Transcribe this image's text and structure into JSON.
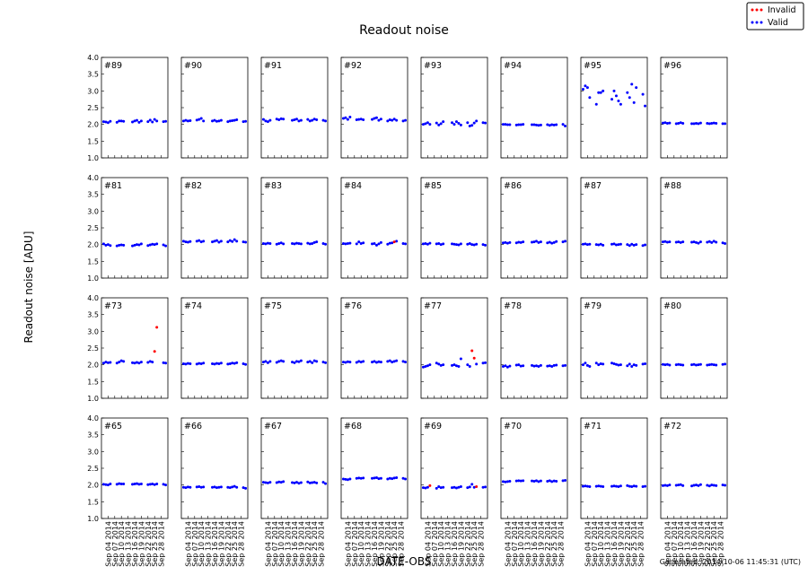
{
  "chart_data": {
    "type": "scatter",
    "title": "Readout noise",
    "xlabel": "DATE-OBS",
    "ylabel": "Readout noise [ADU]",
    "footer": "Generated: 2014-10-06 11:45:31 (UTC)",
    "legend": [
      {
        "name": "Invalid",
        "color": "#ff0000"
      },
      {
        "name": "Valid",
        "color": "#0000ff"
      }
    ],
    "legend_loc": "upper right",
    "xlim": [
      "Sep 01 2014",
      "Oct 01 2014"
    ],
    "xticks": [
      "Sep 04 2014",
      "Sep 07 2014",
      "Sep 10 2014",
      "Sep 13 2014",
      "Sep 16 2014",
      "Sep 19 2014",
      "Sep 22 2014",
      "Sep 25 2014",
      "Sep 28 2014"
    ],
    "ylim": [
      1.0,
      4.0
    ],
    "yticks": [
      {
        "value": 1,
        "label": "1.0"
      },
      {
        "value": 1.5,
        "label": "1.5"
      },
      {
        "value": 2,
        "label": "2.0"
      },
      {
        "value": 2.5,
        "label": "2.5"
      },
      {
        "value": 3,
        "label": "3.0"
      },
      {
        "value": 3.5,
        "label": "3.5"
      },
      {
        "value": 4,
        "label": "4.0"
      }
    ],
    "x": [
      "Sep 02 2014",
      "Sep 03 2014",
      "Sep 04 2014",
      "Sep 05 2014",
      "Sep 08 2014",
      "Sep 09 2014",
      "Sep 10 2014",
      "Sep 11 2014",
      "Sep 15 2014",
      "Sep 16 2014",
      "Sep 17 2014",
      "Sep 18 2014",
      "Sep 19 2014",
      "Sep 22 2014",
      "Sep 23 2014",
      "Sep 24 2014",
      "Sep 25 2014",
      "Sep 26 2014",
      "Sep 29 2014",
      "Sep 30 2014"
    ],
    "panels": [
      {
        "label": "#89",
        "values": [
          2.08,
          2.07,
          2.05,
          2.09,
          2.06,
          2.1,
          2.1,
          2.09,
          2.07,
          2.1,
          2.12,
          2.06,
          2.1,
          2.08,
          2.13,
          2.07,
          2.15,
          2.1,
          2.08,
          2.09
        ]
      },
      {
        "label": "#90",
        "values": [
          2.1,
          2.12,
          2.1,
          2.11,
          2.13,
          2.15,
          2.18,
          2.1,
          2.1,
          2.12,
          2.09,
          2.1,
          2.12,
          2.08,
          2.1,
          2.11,
          2.12,
          2.14,
          2.08,
          2.09
        ]
      },
      {
        "label": "#91",
        "values": [
          2.15,
          2.1,
          2.08,
          2.12,
          2.16,
          2.14,
          2.17,
          2.16,
          2.12,
          2.14,
          2.16,
          2.1,
          2.12,
          2.15,
          2.1,
          2.12,
          2.16,
          2.14,
          2.12,
          2.1
        ]
      },
      {
        "label": "#92",
        "values": [
          2.18,
          2.2,
          2.15,
          2.22,
          2.14,
          2.15,
          2.16,
          2.14,
          2.15,
          2.18,
          2.2,
          2.12,
          2.16,
          2.1,
          2.14,
          2.12,
          2.16,
          2.12,
          2.1,
          2.12
        ]
      },
      {
        "label": "#93",
        "values": [
          2.0,
          2.02,
          2.05,
          2.0,
          2.04,
          1.98,
          2.02,
          2.08,
          2.05,
          2.0,
          2.08,
          2.03,
          1.98,
          2.05,
          1.95,
          1.97,
          2.04,
          2.1,
          2.05,
          2.04
        ]
      },
      {
        "label": "#94",
        "values": [
          2.0,
          2.0,
          1.99,
          1.99,
          1.98,
          1.99,
          1.99,
          2.0,
          1.99,
          1.99,
          1.98,
          1.97,
          1.98,
          1.99,
          1.97,
          1.99,
          1.98,
          1.99,
          2.0,
          1.95
        ]
      },
      {
        "label": "#95",
        "values": [
          3.05,
          3.15,
          3.1,
          2.8,
          2.6,
          2.95,
          2.95,
          3.0,
          2.75,
          3.0,
          2.85,
          2.7,
          2.6,
          2.95,
          2.8,
          3.2,
          2.65,
          3.1,
          2.9,
          2.55
        ]
      },
      {
        "label": "#96",
        "values": [
          2.04,
          2.05,
          2.03,
          2.04,
          2.02,
          2.03,
          2.05,
          2.03,
          2.02,
          2.02,
          2.03,
          2.02,
          2.04,
          2.03,
          2.02,
          2.03,
          2.04,
          2.03,
          2.02,
          2.02
        ]
      },
      {
        "label": "#81",
        "values": [
          2.02,
          1.98,
          2.0,
          1.97,
          1.96,
          1.98,
          1.99,
          1.98,
          1.96,
          1.98,
          2.0,
          1.99,
          2.02,
          1.97,
          1.99,
          2.01,
          2.0,
          2.02,
          1.99,
          1.96
        ]
      },
      {
        "label": "#82",
        "values": [
          2.1,
          2.08,
          2.07,
          2.09,
          2.1,
          2.12,
          2.08,
          2.1,
          2.08,
          2.1,
          2.12,
          2.07,
          2.1,
          2.08,
          2.12,
          2.09,
          2.15,
          2.1,
          2.08,
          2.07
        ]
      },
      {
        "label": "#83",
        "values": [
          2.03,
          2.02,
          2.04,
          2.03,
          2.01,
          2.03,
          2.05,
          2.02,
          2.03,
          2.02,
          2.04,
          2.03,
          2.02,
          2.04,
          2.02,
          2.03,
          2.06,
          2.08,
          2.03,
          2.01
        ]
      },
      {
        "label": "#84",
        "values": [
          2.03,
          2.02,
          2.03,
          2.04,
          2.02,
          2.08,
          2.03,
          2.05,
          2.02,
          2.03,
          1.98,
          2.02,
          2.06,
          2.01,
          2.04,
          2.05,
          null,
          2.1,
          2.03,
          2.02
        ],
        "invalid": [
          null,
          null,
          null,
          null,
          null,
          null,
          null,
          null,
          null,
          null,
          null,
          null,
          null,
          null,
          null,
          null,
          2.08,
          null,
          null,
          null
        ]
      },
      {
        "label": "#85",
        "values": [
          2.02,
          2.03,
          2.01,
          2.04,
          2.02,
          2.03,
          2.0,
          2.02,
          2.02,
          2.01,
          2.0,
          1.99,
          2.02,
          2.01,
          2.03,
          2.0,
          1.99,
          2.01,
          2.0,
          1.98
        ]
      },
      {
        "label": "#86",
        "values": [
          2.05,
          2.06,
          2.04,
          2.06,
          2.05,
          2.07,
          2.06,
          2.08,
          2.07,
          2.08,
          2.1,
          2.06,
          2.08,
          2.05,
          2.07,
          2.04,
          2.06,
          2.09,
          2.08,
          2.1
        ]
      },
      {
        "label": "#87",
        "values": [
          2.01,
          2.02,
          2.0,
          2.01,
          2.0,
          1.99,
          2.01,
          1.98,
          2.01,
          2.02,
          1.99,
          2.0,
          2.01,
          2.0,
          1.97,
          2.01,
          1.98,
          2.0,
          1.97,
          1.99
        ]
      },
      {
        "label": "#88",
        "values": [
          2.08,
          2.09,
          2.07,
          2.08,
          2.07,
          2.08,
          2.06,
          2.08,
          2.07,
          2.08,
          2.06,
          2.04,
          2.08,
          2.07,
          2.09,
          2.06,
          2.1,
          2.07,
          2.05,
          2.03
        ]
      },
      {
        "label": "#73",
        "values": [
          2.05,
          2.08,
          2.06,
          2.07,
          2.05,
          2.08,
          2.12,
          2.1,
          2.06,
          2.05,
          2.07,
          2.05,
          2.08,
          2.07,
          2.1,
          2.08,
          null,
          null,
          2.06,
          2.05
        ],
        "invalid": [
          null,
          null,
          null,
          null,
          null,
          null,
          null,
          null,
          null,
          null,
          null,
          null,
          null,
          null,
          null,
          null,
          2.4,
          3.12,
          null,
          null
        ]
      },
      {
        "label": "#74",
        "values": [
          2.03,
          2.02,
          2.04,
          2.03,
          2.02,
          2.04,
          2.03,
          2.05,
          2.03,
          2.02,
          2.04,
          2.03,
          2.05,
          2.02,
          2.03,
          2.05,
          2.04,
          2.06,
          2.03,
          2.01
        ]
      },
      {
        "label": "#75",
        "values": [
          2.08,
          2.1,
          2.06,
          2.1,
          2.07,
          2.1,
          2.12,
          2.1,
          2.08,
          2.06,
          2.1,
          2.09,
          2.12,
          2.08,
          2.1,
          2.06,
          2.12,
          2.1,
          2.08,
          2.06
        ]
      },
      {
        "label": "#76",
        "values": [
          2.08,
          2.07,
          2.09,
          2.08,
          2.07,
          2.1,
          2.08,
          2.1,
          2.08,
          2.1,
          2.07,
          2.09,
          2.08,
          2.1,
          2.12,
          2.08,
          2.1,
          2.12,
          2.1,
          2.08
        ]
      },
      {
        "label": "#77",
        "values": [
          1.93,
          1.95,
          1.97,
          2.0,
          2.05,
          2.02,
          1.98,
          2.0,
          1.98,
          2.0,
          1.97,
          1.95,
          2.18,
          2.0,
          1.95,
          null,
          null,
          2.02,
          2.05,
          2.06
        ],
        "invalid": [
          null,
          null,
          null,
          null,
          null,
          null,
          null,
          null,
          null,
          null,
          null,
          null,
          null,
          null,
          null,
          2.42,
          2.2,
          null,
          null,
          null
        ]
      },
      {
        "label": "#78",
        "values": [
          1.95,
          1.97,
          1.93,
          1.96,
          1.99,
          2.0,
          1.96,
          1.97,
          1.98,
          1.96,
          1.97,
          1.95,
          1.98,
          1.96,
          1.97,
          1.95,
          1.98,
          1.99,
          1.97,
          1.98
        ]
      },
      {
        "label": "#79",
        "values": [
          2.0,
          2.05,
          1.98,
          1.95,
          2.05,
          2.0,
          2.03,
          2.02,
          2.05,
          2.03,
          2.01,
          1.99,
          2.0,
          1.97,
          2.02,
          1.95,
          2.0,
          1.98,
          2.02,
          2.03
        ]
      },
      {
        "label": "#80",
        "values": [
          2.01,
          2.0,
          2.01,
          1.99,
          2.0,
          2.01,
          2.0,
          1.99,
          2.0,
          2.01,
          1.99,
          2.0,
          2.01,
          1.99,
          2.0,
          2.01,
          2.0,
          1.99,
          2.01,
          2.02
        ]
      },
      {
        "label": "#65",
        "values": [
          2.02,
          2.01,
          2.0,
          2.03,
          2.02,
          2.04,
          2.03,
          2.03,
          2.02,
          2.03,
          2.04,
          2.02,
          2.03,
          2.01,
          2.02,
          2.03,
          2.01,
          2.03,
          2.02,
          2.0
        ]
      },
      {
        "label": "#66",
        "values": [
          1.93,
          1.92,
          1.94,
          1.93,
          1.94,
          1.95,
          1.93,
          1.94,
          1.93,
          1.94,
          1.92,
          1.93,
          1.94,
          1.93,
          1.92,
          1.94,
          1.96,
          1.93,
          1.92,
          1.9
        ]
      },
      {
        "label": "#67",
        "values": [
          2.08,
          2.07,
          2.06,
          2.08,
          2.07,
          2.09,
          2.08,
          2.1,
          2.07,
          2.06,
          2.08,
          2.05,
          2.07,
          2.09,
          2.06,
          2.07,
          2.08,
          2.06,
          2.08,
          2.04
        ]
      },
      {
        "label": "#68",
        "values": [
          2.18,
          2.17,
          2.16,
          2.18,
          2.2,
          2.21,
          2.2,
          2.21,
          2.2,
          2.21,
          2.22,
          2.19,
          2.2,
          2.18,
          2.2,
          2.19,
          2.21,
          2.22,
          2.2,
          2.18
        ]
      },
      {
        "label": "#69",
        "values": [
          1.92,
          1.91,
          1.93,
          null,
          1.9,
          1.95,
          1.92,
          1.93,
          1.92,
          1.93,
          1.91,
          1.93,
          1.95,
          1.92,
          1.94,
          2.02,
          1.93,
          null,
          1.93,
          1.94
        ],
        "invalid": [
          null,
          null,
          null,
          1.98,
          null,
          null,
          null,
          null,
          null,
          null,
          null,
          null,
          null,
          null,
          null,
          null,
          null,
          1.95,
          null,
          null
        ]
      },
      {
        "label": "#70",
        "values": [
          2.1,
          2.09,
          2.1,
          2.11,
          2.12,
          2.13,
          2.12,
          2.13,
          2.12,
          2.11,
          2.13,
          2.1,
          2.12,
          2.11,
          2.13,
          2.1,
          2.12,
          2.11,
          2.13,
          2.14
        ]
      },
      {
        "label": "#71",
        "values": [
          1.96,
          1.97,
          1.96,
          1.95,
          1.96,
          1.97,
          1.96,
          1.95,
          1.96,
          1.97,
          1.96,
          1.95,
          1.97,
          1.98,
          1.96,
          1.95,
          1.97,
          1.96,
          1.95,
          1.96
        ]
      },
      {
        "label": "#72",
        "values": [
          1.98,
          1.99,
          1.98,
          2.0,
          1.99,
          2.0,
          2.01,
          1.98,
          1.97,
          1.99,
          2.0,
          1.98,
          2.01,
          1.99,
          1.97,
          2.0,
          1.99,
          1.98,
          2.0,
          1.99
        ]
      }
    ]
  }
}
